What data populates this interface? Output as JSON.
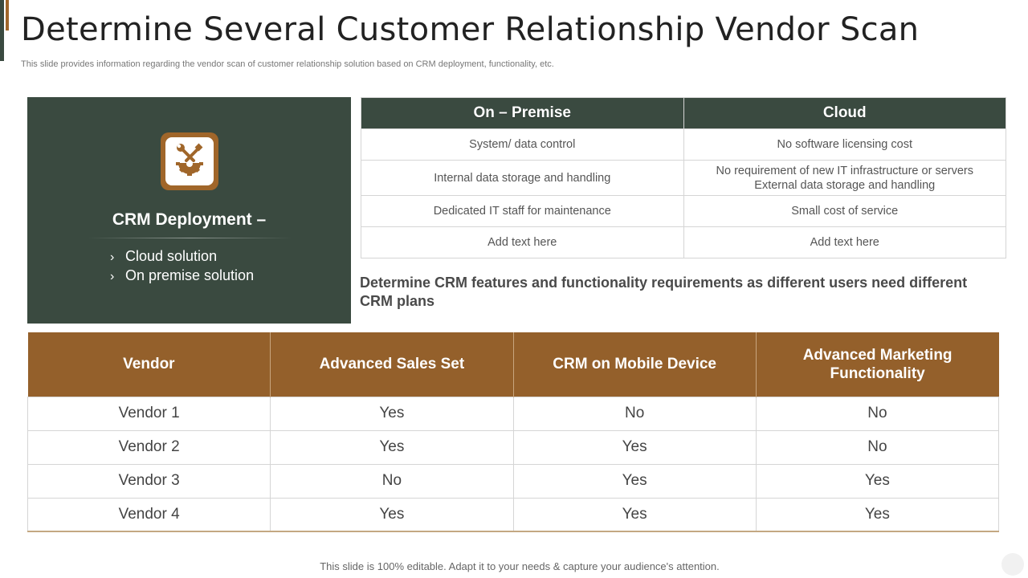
{
  "header": {
    "title": "Determine Several Customer Relationship Vendor Scan",
    "subtitle": "This slide provides information regarding the vendor scan of customer relationship solution based on CRM deployment, functionality, etc."
  },
  "crm_panel": {
    "icon": "tools-gear-icon",
    "title": "CRM Deployment –",
    "items": [
      {
        "label": "Cloud solution"
      },
      {
        "label": "On premise solution"
      }
    ]
  },
  "deployment_table": {
    "headers": [
      "On – Premise",
      "Cloud"
    ],
    "rows": [
      [
        "System/ data control",
        "No software licensing cost"
      ],
      [
        "Internal data storage and handling",
        "No requirement of new IT infrastructure or servers\nExternal data storage and handling"
      ],
      [
        "Dedicated IT staff for maintenance",
        "Small cost of service"
      ],
      [
        "Add text here",
        "Add text here"
      ]
    ]
  },
  "callout": "Determine CRM features and functionality requirements as different users need different CRM plans",
  "vendor_table": {
    "headers": [
      "Vendor",
      "Advanced Sales Set",
      "CRM on Mobile Device",
      "Advanced Marketing Functionality"
    ],
    "rows": [
      [
        "Vendor 1",
        "Yes",
        "No",
        "No"
      ],
      [
        "Vendor 2",
        "Yes",
        "Yes",
        "No"
      ],
      [
        "Vendor 3",
        "No",
        "Yes",
        "Yes"
      ],
      [
        "Vendor 4",
        "Yes",
        "Yes",
        "Yes"
      ]
    ]
  },
  "footer": "This slide is 100% editable. Adapt it to your needs & capture your audience's attention.",
  "colors": {
    "dark_green": "#3a4a40",
    "brown": "#94602b",
    "icon_brown": "#a0662a"
  }
}
